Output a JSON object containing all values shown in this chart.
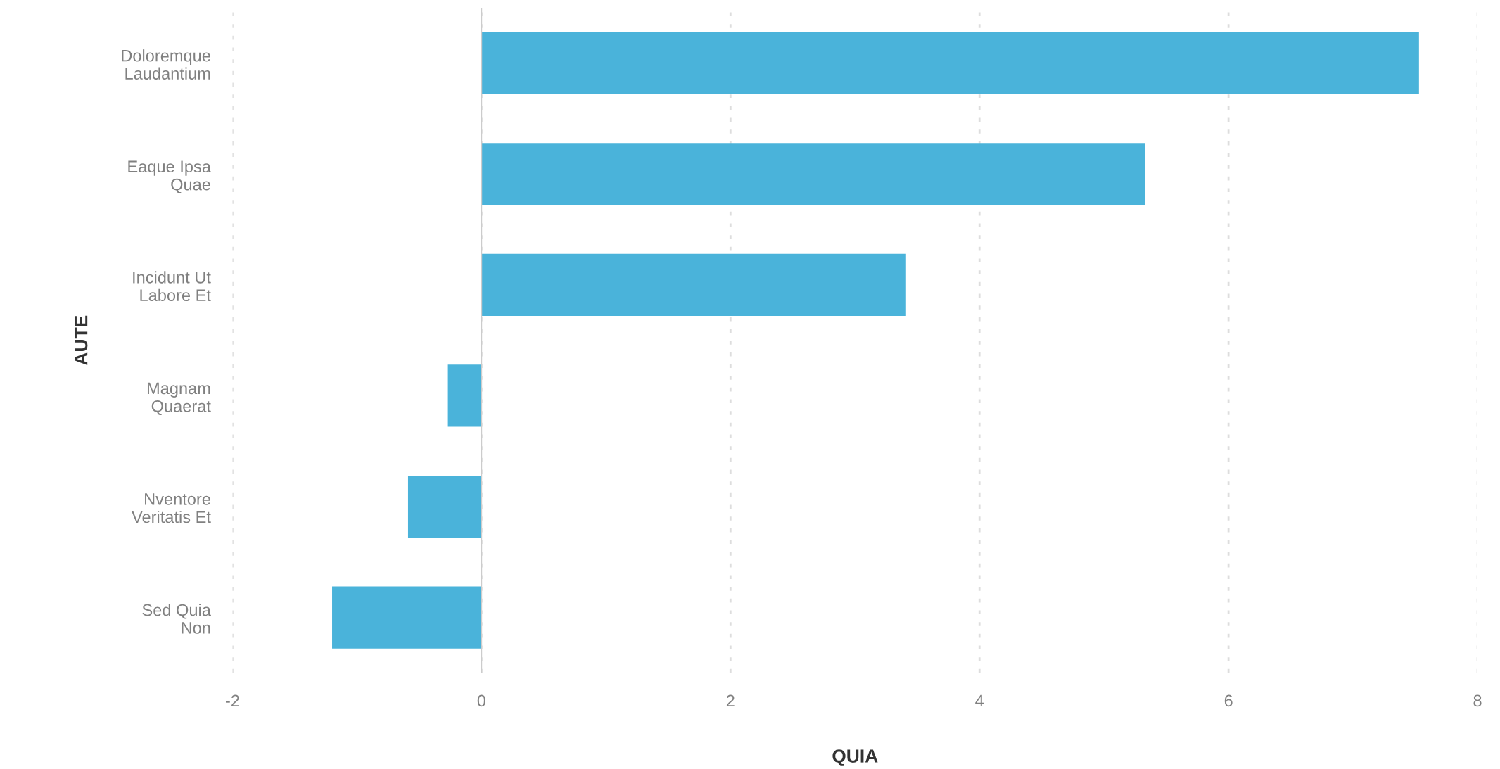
{
  "chart_data": {
    "type": "bar",
    "orientation": "horizontal",
    "xlabel": "QUIA",
    "ylabel": "AUTE",
    "categories": [
      "Doloremque\nLaudantium",
      "Eaque Ipsa\nQuae",
      "Incidunt Ut\nLabore Et",
      "Magnam\nQuaerat",
      "Nventore\nVeritatis Et",
      "Sed Quia\nNon"
    ],
    "values": [
      7.53,
      5.33,
      3.41,
      -0.27,
      -0.59,
      -1.2
    ],
    "color": "#4ab3da",
    "xlim": [
      -2,
      8
    ],
    "xticks": [
      -2,
      0,
      2,
      4,
      6,
      8
    ],
    "grid": "x",
    "ref_lines": [
      {
        "axis": "x",
        "value": 0,
        "color": "#cccccc",
        "line_style": "solid"
      }
    ]
  }
}
